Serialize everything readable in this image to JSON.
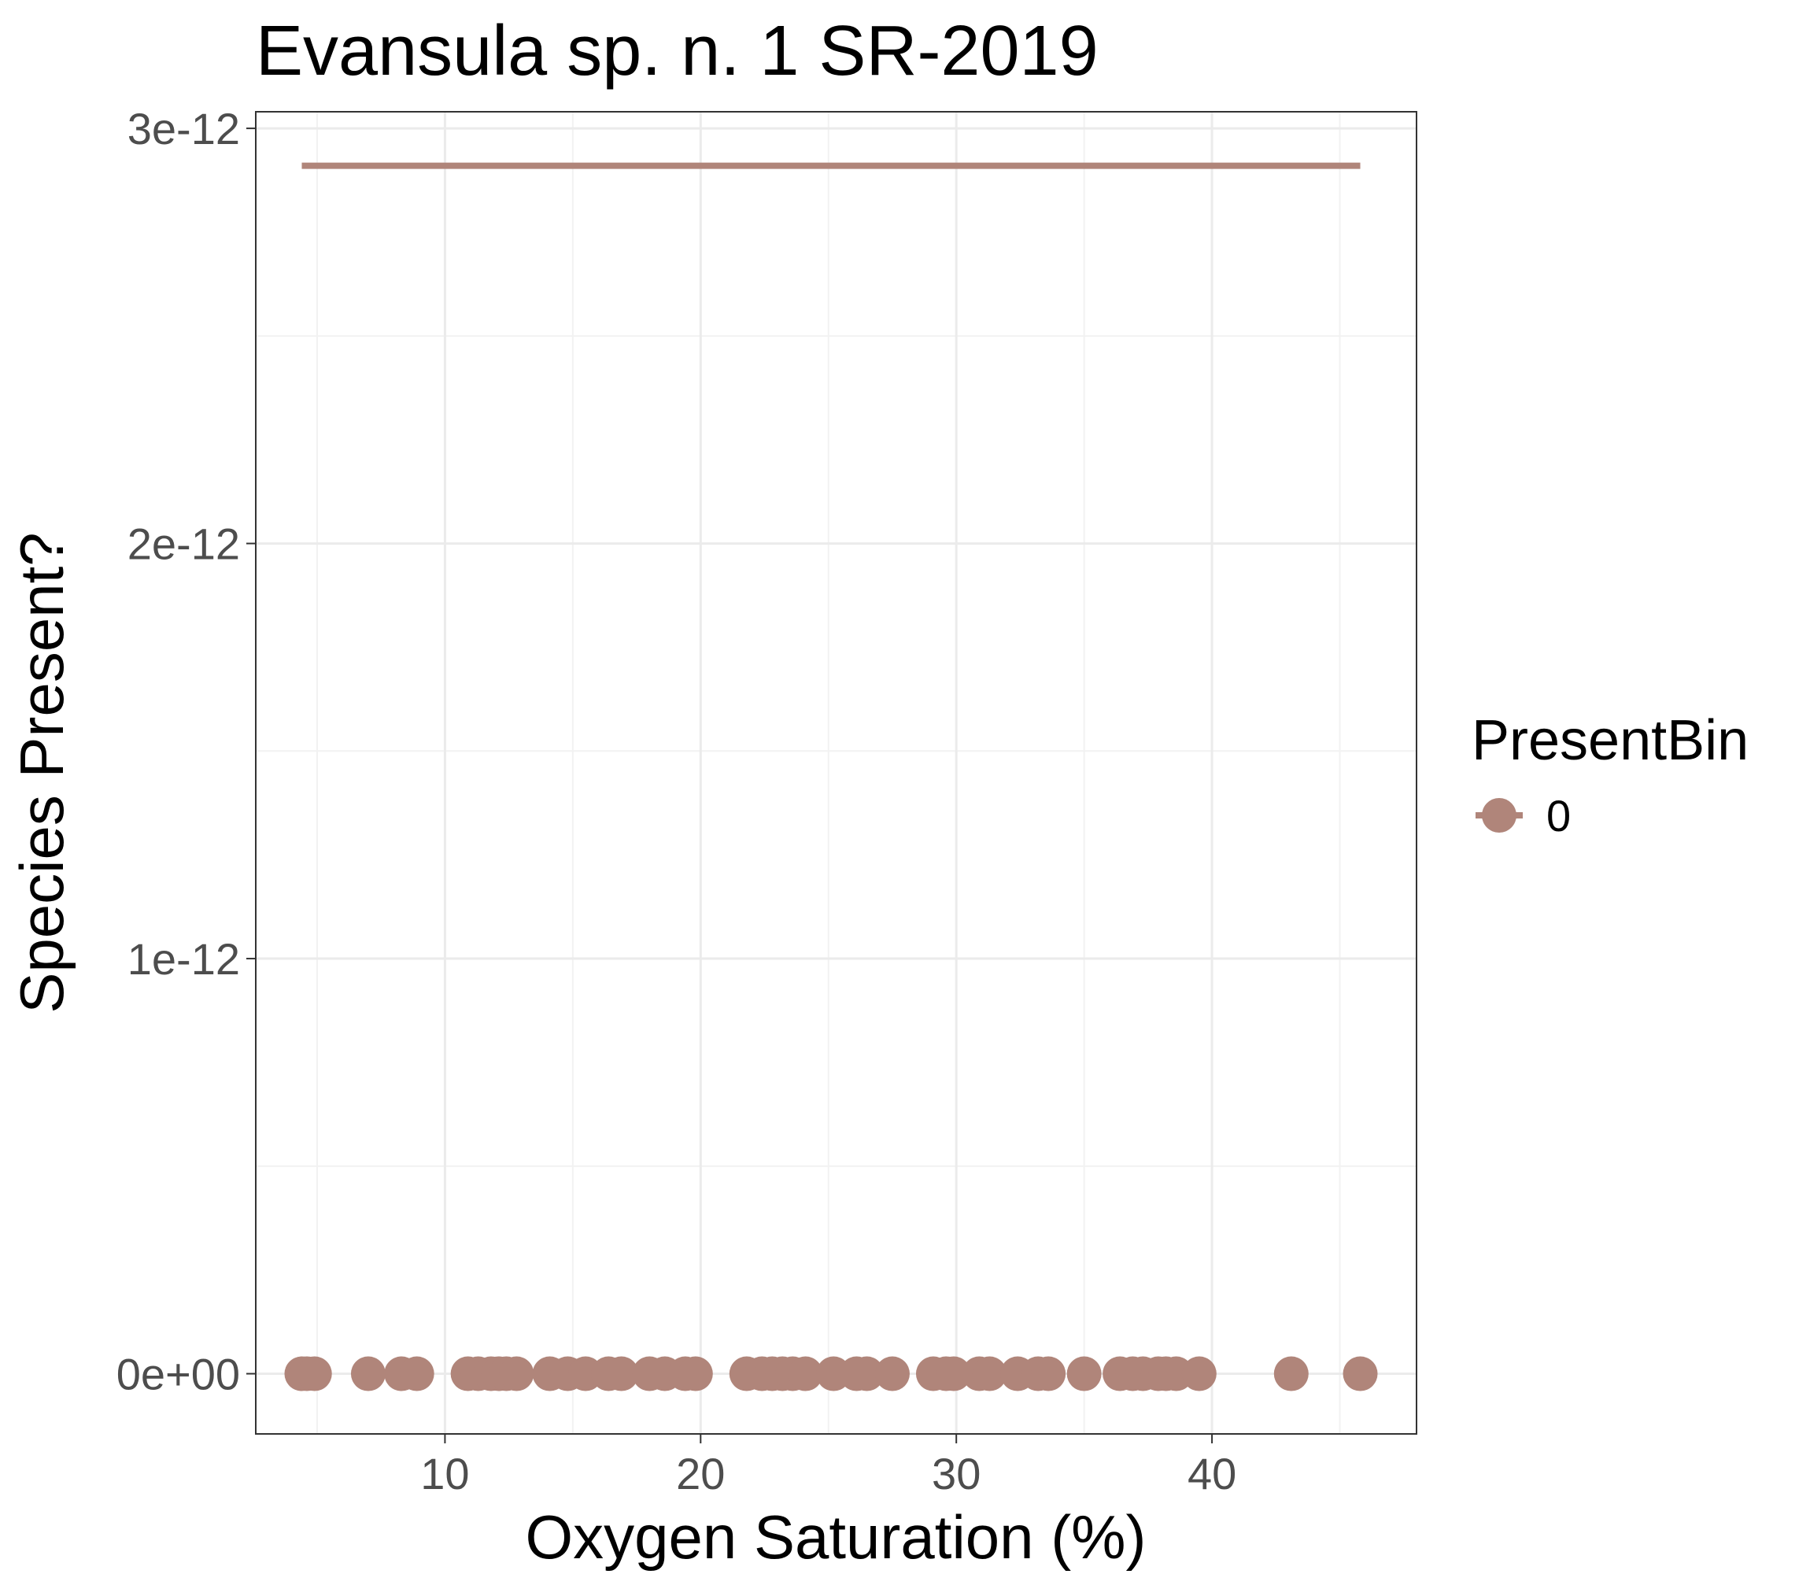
{
  "chart_data": {
    "type": "scatter",
    "title": "Evansula sp. n. 1 SR-2019",
    "xlabel": "Oxygen Saturation (%)",
    "ylabel": "Species Present?",
    "xlim": [
      2.6,
      48.0
    ],
    "ylim": [
      -1.45e-13,
      3.04e-12
    ],
    "xticks": [
      10,
      20,
      30,
      40
    ],
    "xtick_labels": [
      "10",
      "20",
      "30",
      "40"
    ],
    "yticks": [
      0,
      1e-12,
      2e-12,
      3e-12
    ],
    "ytick_labels": [
      "0e+00",
      "1e-12",
      "2e-12",
      "3e-12"
    ],
    "grid": true,
    "legend": {
      "title": "PresentBin",
      "position": "right",
      "entries": [
        "0"
      ]
    },
    "color": "#b0857a",
    "series": [
      {
        "name": "0",
        "x": [
          4.4,
          4.6,
          4.9,
          7.0,
          8.3,
          8.9,
          10.9,
          11.3,
          11.8,
          12.1,
          12.4,
          12.8,
          14.1,
          14.8,
          15.5,
          16.4,
          16.9,
          18.0,
          18.6,
          19.4,
          19.8,
          21.8,
          22.4,
          22.8,
          23.2,
          23.6,
          24.1,
          25.2,
          26.1,
          26.5,
          27.5,
          29.1,
          29.6,
          29.9,
          30.9,
          31.3,
          32.4,
          33.2,
          33.6,
          35.0,
          36.4,
          36.9,
          37.3,
          37.9,
          38.2,
          38.6,
          39.5,
          43.1,
          45.8
        ],
        "y": [
          0,
          0,
          0,
          0,
          0,
          0,
          0,
          0,
          0,
          0,
          0,
          0,
          0,
          0,
          0,
          0,
          0,
          0,
          0,
          0,
          0,
          0,
          0,
          0,
          0,
          0,
          0,
          0,
          0,
          0,
          0,
          0,
          0,
          0,
          0,
          0,
          0,
          0,
          0,
          0,
          0,
          0,
          0,
          0,
          0,
          0,
          0,
          0,
          0
        ]
      }
    ],
    "fit_line": {
      "x": [
        4.4,
        45.8
      ],
      "y": [
        2.91e-12,
        2.91e-12
      ]
    }
  }
}
